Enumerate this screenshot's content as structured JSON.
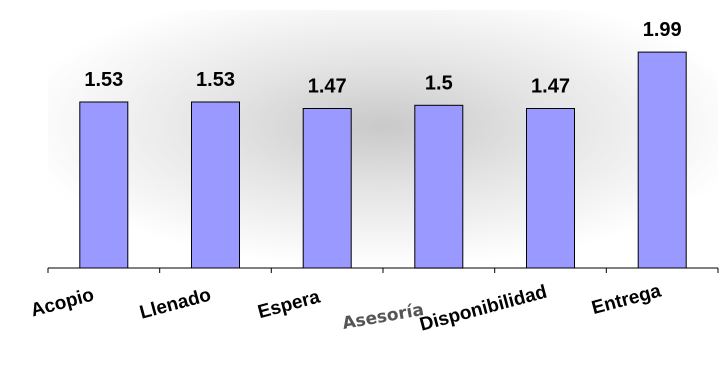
{
  "chart_data": {
    "type": "bar",
    "categories": [
      "Acopio",
      "Llenado",
      "Espera",
      "Asesoría",
      "Disponibilidad",
      "Entrega"
    ],
    "values": [
      1.53,
      1.53,
      1.47,
      1.5,
      1.47,
      1.99
    ],
    "value_labels": [
      "1.53",
      "1.53",
      "1.47",
      "1.5",
      "1.47",
      "1.99"
    ],
    "title": "",
    "xlabel": "",
    "ylabel": "",
    "ylim": [
      0,
      2.6
    ],
    "grid": false,
    "legend": "none",
    "colors": {
      "bar_fill": "#9999ff",
      "bar_stroke": "#000000",
      "axis": "#000000",
      "plot_glow": "#c9c9c9"
    }
  }
}
